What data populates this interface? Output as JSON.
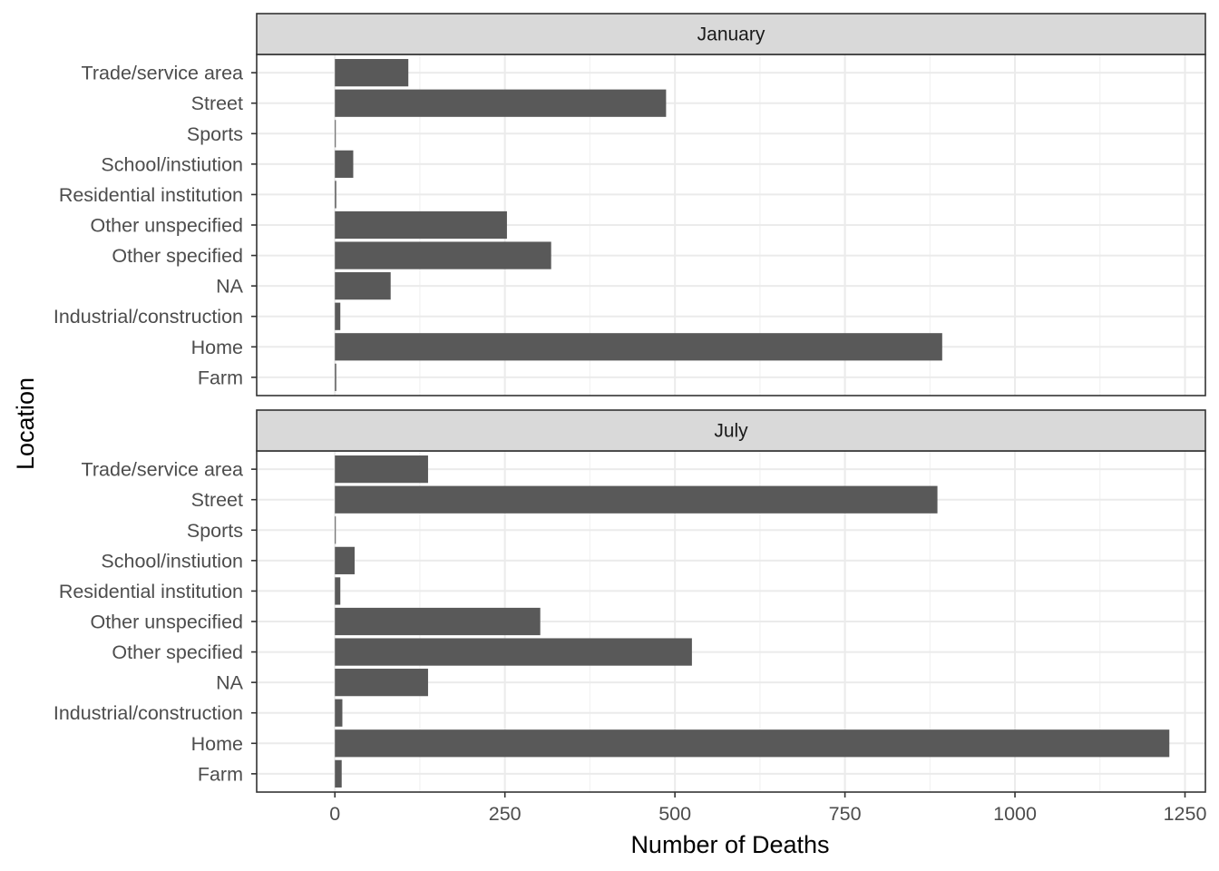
{
  "chart_data": {
    "type": "bar",
    "orientation": "horizontal",
    "xlabel": "Number of Deaths",
    "ylabel": "Location",
    "xlim": [
      -115,
      1280
    ],
    "xticks": [
      0,
      250,
      500,
      750,
      1000,
      1250
    ],
    "xtick_labels": [
      "0",
      "250",
      "500",
      "750",
      "1000",
      "1250"
    ],
    "grid": true,
    "bar_color": "#595959",
    "categories": [
      "Farm",
      "Home",
      "Industrial/construction",
      "NA",
      "Other specified",
      "Other unspecified",
      "Residential institution",
      "School/instiution",
      "Sports",
      "Street",
      "Trade/service area"
    ],
    "panels": [
      {
        "title": "January",
        "values": [
          2,
          893,
          8,
          82,
          318,
          253,
          2,
          27,
          1,
          487,
          108
        ]
      },
      {
        "title": "July",
        "values": [
          10,
          1227,
          11,
          137,
          525,
          302,
          8,
          29,
          1,
          886,
          137
        ]
      }
    ]
  }
}
